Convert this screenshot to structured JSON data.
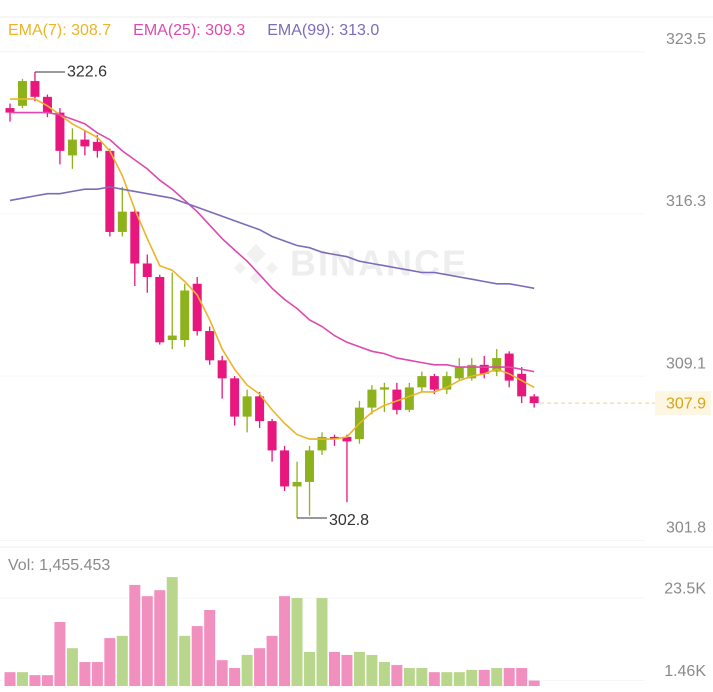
{
  "chart_data": {
    "type": "candlestick",
    "watermark": "BINANCE",
    "open": [
      321.0,
      321.1,
      322.2,
      321.5,
      320.8,
      318.9,
      319.6,
      319.5,
      319.1,
      315.5,
      316.4,
      314.1,
      313.5,
      310.7,
      310.7,
      313.2,
      311.1,
      309.8,
      309.0,
      307.3,
      308.2,
      307.1,
      305.8,
      304.2,
      304.4,
      305.8,
      306.4,
      306.4,
      306.3,
      307.7,
      308.5,
      308.5,
      307.6,
      308.6,
      309.1,
      308.5,
      309.0,
      309.0,
      309.6,
      309.3,
      310.1,
      309.2,
      308.2
    ],
    "high": [
      321.2,
      322.3,
      322.6,
      321.6,
      321.0,
      320.1,
      320.0,
      319.8,
      319.2,
      317.5,
      316.5,
      314.5,
      313.6,
      313.7,
      313.2,
      313.5,
      311.3,
      310.0,
      309.1,
      308.5,
      308.4,
      307.2,
      306.0,
      305.3,
      306.0,
      306.6,
      306.5,
      306.5,
      308.0,
      308.7,
      308.8,
      308.8,
      308.8,
      309.3,
      309.2,
      309.3,
      309.9,
      309.9,
      310.0,
      310.3,
      310.2,
      309.5,
      308.3
    ],
    "low": [
      320.4,
      321.0,
      321.3,
      320.6,
      318.5,
      318.3,
      318.9,
      318.8,
      315.3,
      315.3,
      313.1,
      312.8,
      310.5,
      310.3,
      310.4,
      310.9,
      309.6,
      308.1,
      306.9,
      306.6,
      306.8,
      305.3,
      304.0,
      302.8,
      302.9,
      305.6,
      306.0,
      303.5,
      306.1,
      307.4,
      307.5,
      307.4,
      307.5,
      308.4,
      308.3,
      308.3,
      308.9,
      308.9,
      309.0,
      309.1,
      308.6,
      307.9,
      307.7
    ],
    "close": [
      320.8,
      322.2,
      321.5,
      320.8,
      319.1,
      319.6,
      319.3,
      319.1,
      315.5,
      316.4,
      314.1,
      313.5,
      310.6,
      310.9,
      312.9,
      311.1,
      309.8,
      309.0,
      307.3,
      308.2,
      307.1,
      305.8,
      304.2,
      304.4,
      305.8,
      306.4,
      306.3,
      306.2,
      307.7,
      308.5,
      308.6,
      307.6,
      308.6,
      309.1,
      308.5,
      309.1,
      309.5,
      309.6,
      309.2,
      309.9,
      308.9,
      308.2,
      307.9
    ],
    "up_color": "#8db21c",
    "down_color": "#e8177d",
    "series": [
      {
        "name": "EMA(7): 308.7",
        "color": "#ebb42a",
        "values": [
          321.4,
          321.4,
          321.4,
          321.1,
          320.7,
          320.3,
          320.0,
          319.7,
          319.1,
          318.0,
          316.5,
          315.2,
          314.0,
          313.8,
          313.3,
          312.7,
          311.6,
          310.3,
          309.4,
          308.7,
          308.3,
          307.6,
          307.0,
          306.5,
          306.3,
          306.3,
          306.3,
          306.4,
          307.0,
          307.5,
          307.8,
          308.0,
          308.2,
          308.4,
          308.4,
          308.6,
          308.9,
          309.1,
          309.2,
          309.4,
          309.2,
          308.9,
          308.6
        ]
      },
      {
        "name": "EMA(25): 309.3",
        "color": "#dd4aad",
        "values": [
          320.8,
          320.8,
          320.8,
          320.8,
          320.7,
          320.5,
          320.3,
          319.9,
          319.6,
          319.1,
          318.7,
          318.3,
          317.8,
          317.4,
          316.9,
          316.4,
          315.8,
          315.2,
          314.7,
          314.2,
          313.6,
          313.0,
          312.5,
          312.1,
          311.6,
          311.3,
          310.9,
          310.6,
          310.4,
          310.2,
          310.1,
          309.9,
          309.8,
          309.7,
          309.6,
          309.6,
          309.5,
          309.5,
          309.5,
          309.5,
          309.5,
          309.4,
          309.3
        ]
      },
      {
        "name": "EMA(99): 313.0",
        "color": "#7d6bb9",
        "values": [
          316.9,
          317.0,
          317.1,
          317.2,
          317.2,
          317.3,
          317.4,
          317.4,
          317.5,
          317.4,
          317.3,
          317.2,
          317.1,
          317.0,
          316.8,
          316.6,
          316.4,
          316.2,
          316.0,
          315.8,
          315.6,
          315.3,
          315.1,
          314.9,
          314.8,
          314.6,
          314.5,
          314.4,
          314.2,
          314.1,
          314.0,
          313.9,
          313.8,
          313.7,
          313.7,
          313.6,
          313.5,
          313.4,
          313.3,
          313.2,
          313.2,
          313.1,
          313.0
        ]
      }
    ],
    "ylim": [
      301.6,
      325.0
    ],
    "yticks": [
      323.5,
      316.3,
      309.1,
      301.8
    ],
    "last_price": 307.9,
    "volume": {
      "label": "Vol: 1,455.453",
      "up_color": "#b9d78c",
      "down_color": "#f18fbf",
      "values": [
        3700,
        3700,
        2900,
        2900,
        17100,
        10100,
        6400,
        6400,
        12800,
        13400,
        27000,
        24000,
        25600,
        29100,
        13400,
        16000,
        20300,
        6900,
        4800,
        8300,
        10100,
        13400,
        24000,
        23500,
        9100,
        23500,
        9100,
        8300,
        9100,
        8300,
        6400,
        5600,
        4800,
        4800,
        3700,
        3700,
        3700,
        4300,
        4300,
        4800,
        4800,
        4800,
        1455.453
      ],
      "ylim": [
        0,
        35800
      ],
      "yticks": [
        {
          "value": 23500,
          "label": "23.5K"
        },
        {
          "value": 1460,
          "label": "1.46K"
        }
      ]
    }
  }
}
